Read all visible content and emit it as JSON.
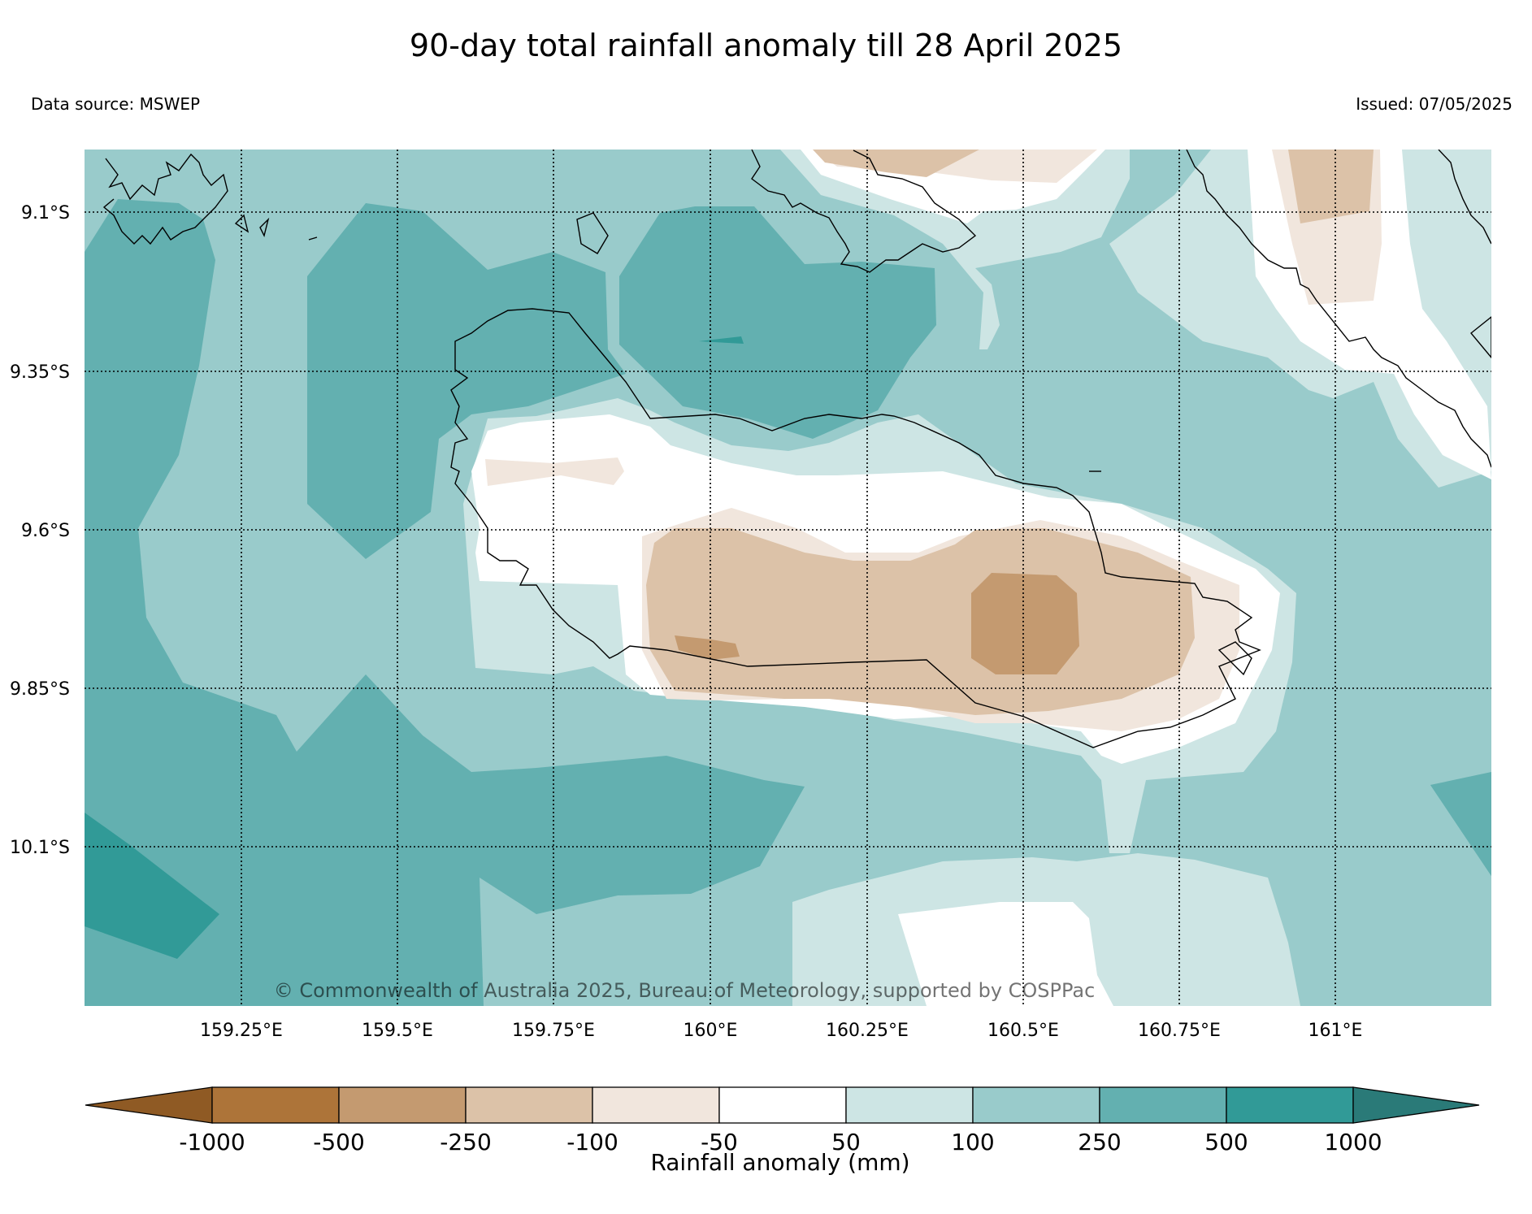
{
  "title": "90-day total rainfall anomaly till 28 April 2025",
  "data_source": "Data source: MSWEP",
  "issued": "Issued: 07/05/2025",
  "copyright": "© Commonwealth of Australia 2025, Bureau of Meteorology, supported by COSPPac",
  "map": {
    "lat_labels": [
      "9.1°S",
      "9.35°S",
      "9.6°S",
      "9.85°S",
      "10.1°S"
    ],
    "lon_labels": [
      "159.25°E",
      "159.5°E",
      "159.75°E",
      "160°E",
      "160.25°E",
      "160.5°E",
      "160.75°E",
      "161°E"
    ],
    "grid": "dotted"
  },
  "colorbar": {
    "label": "Rainfall anomaly (mm)",
    "ticks": [
      "-1000",
      "-500",
      "-250",
      "-100",
      "-50",
      "50",
      "100",
      "250",
      "500",
      "1000"
    ],
    "colors": [
      "#8f5a24",
      "#ad7439",
      "#c49a70",
      "#dcc2a8",
      "#f1e6dd",
      "#ffffff",
      "#cde5e4",
      "#99cbcb",
      "#63b0b0",
      "#319a97",
      "#2a7a78"
    ],
    "extend": "both"
  }
}
